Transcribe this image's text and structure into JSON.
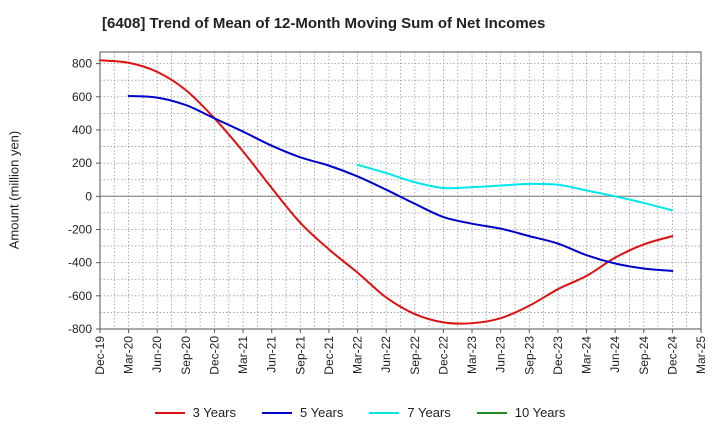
{
  "chart_data": {
    "type": "line",
    "title": "[6408]  Trend of Mean of 12-Month Moving Sum of Net Incomes",
    "xlabel": "",
    "ylabel": "Amount (million yen)",
    "ylim": [
      -800,
      870
    ],
    "yticks": [
      800,
      600,
      400,
      200,
      0,
      -200,
      -400,
      -600,
      -800
    ],
    "categories": [
      "Dec-19",
      "Mar-20",
      "Jun-20",
      "Sep-20",
      "Dec-20",
      "Mar-21",
      "Jun-21",
      "Sep-21",
      "Dec-21",
      "Mar-22",
      "Jun-22",
      "Sep-22",
      "Dec-22",
      "Mar-23",
      "Jun-23",
      "Sep-23",
      "Dec-23",
      "Mar-24",
      "Jun-24",
      "Sep-24",
      "Dec-24",
      "Mar-25"
    ],
    "grid": true,
    "legend_position": "bottom",
    "series": [
      {
        "name": "3 Years",
        "color": "#dd1111",
        "values": [
          820,
          805,
          750,
          640,
          470,
          270,
          50,
          -160,
          -320,
          -460,
          -610,
          -710,
          -760,
          -765,
          -735,
          -660,
          -560,
          -480,
          -370,
          -290,
          -240,
          null
        ]
      },
      {
        "name": "5 Years",
        "color": "#0000c8",
        "values": [
          null,
          605,
          595,
          550,
          470,
          390,
          305,
          235,
          185,
          120,
          40,
          -45,
          -125,
          -165,
          -195,
          -240,
          -285,
          -355,
          -405,
          -435,
          -450,
          null
        ]
      },
      {
        "name": "7 Years",
        "color": "#00e5ee",
        "values": [
          null,
          null,
          null,
          null,
          null,
          null,
          null,
          null,
          null,
          190,
          140,
          85,
          50,
          55,
          65,
          75,
          70,
          35,
          0,
          -40,
          -85,
          null
        ]
      },
      {
        "name": "10 Years",
        "color": "#228B22",
        "values": [
          null,
          null,
          null,
          null,
          null,
          null,
          null,
          null,
          null,
          null,
          null,
          null,
          null,
          null,
          null,
          null,
          null,
          null,
          null,
          null,
          null,
          null
        ]
      }
    ]
  }
}
